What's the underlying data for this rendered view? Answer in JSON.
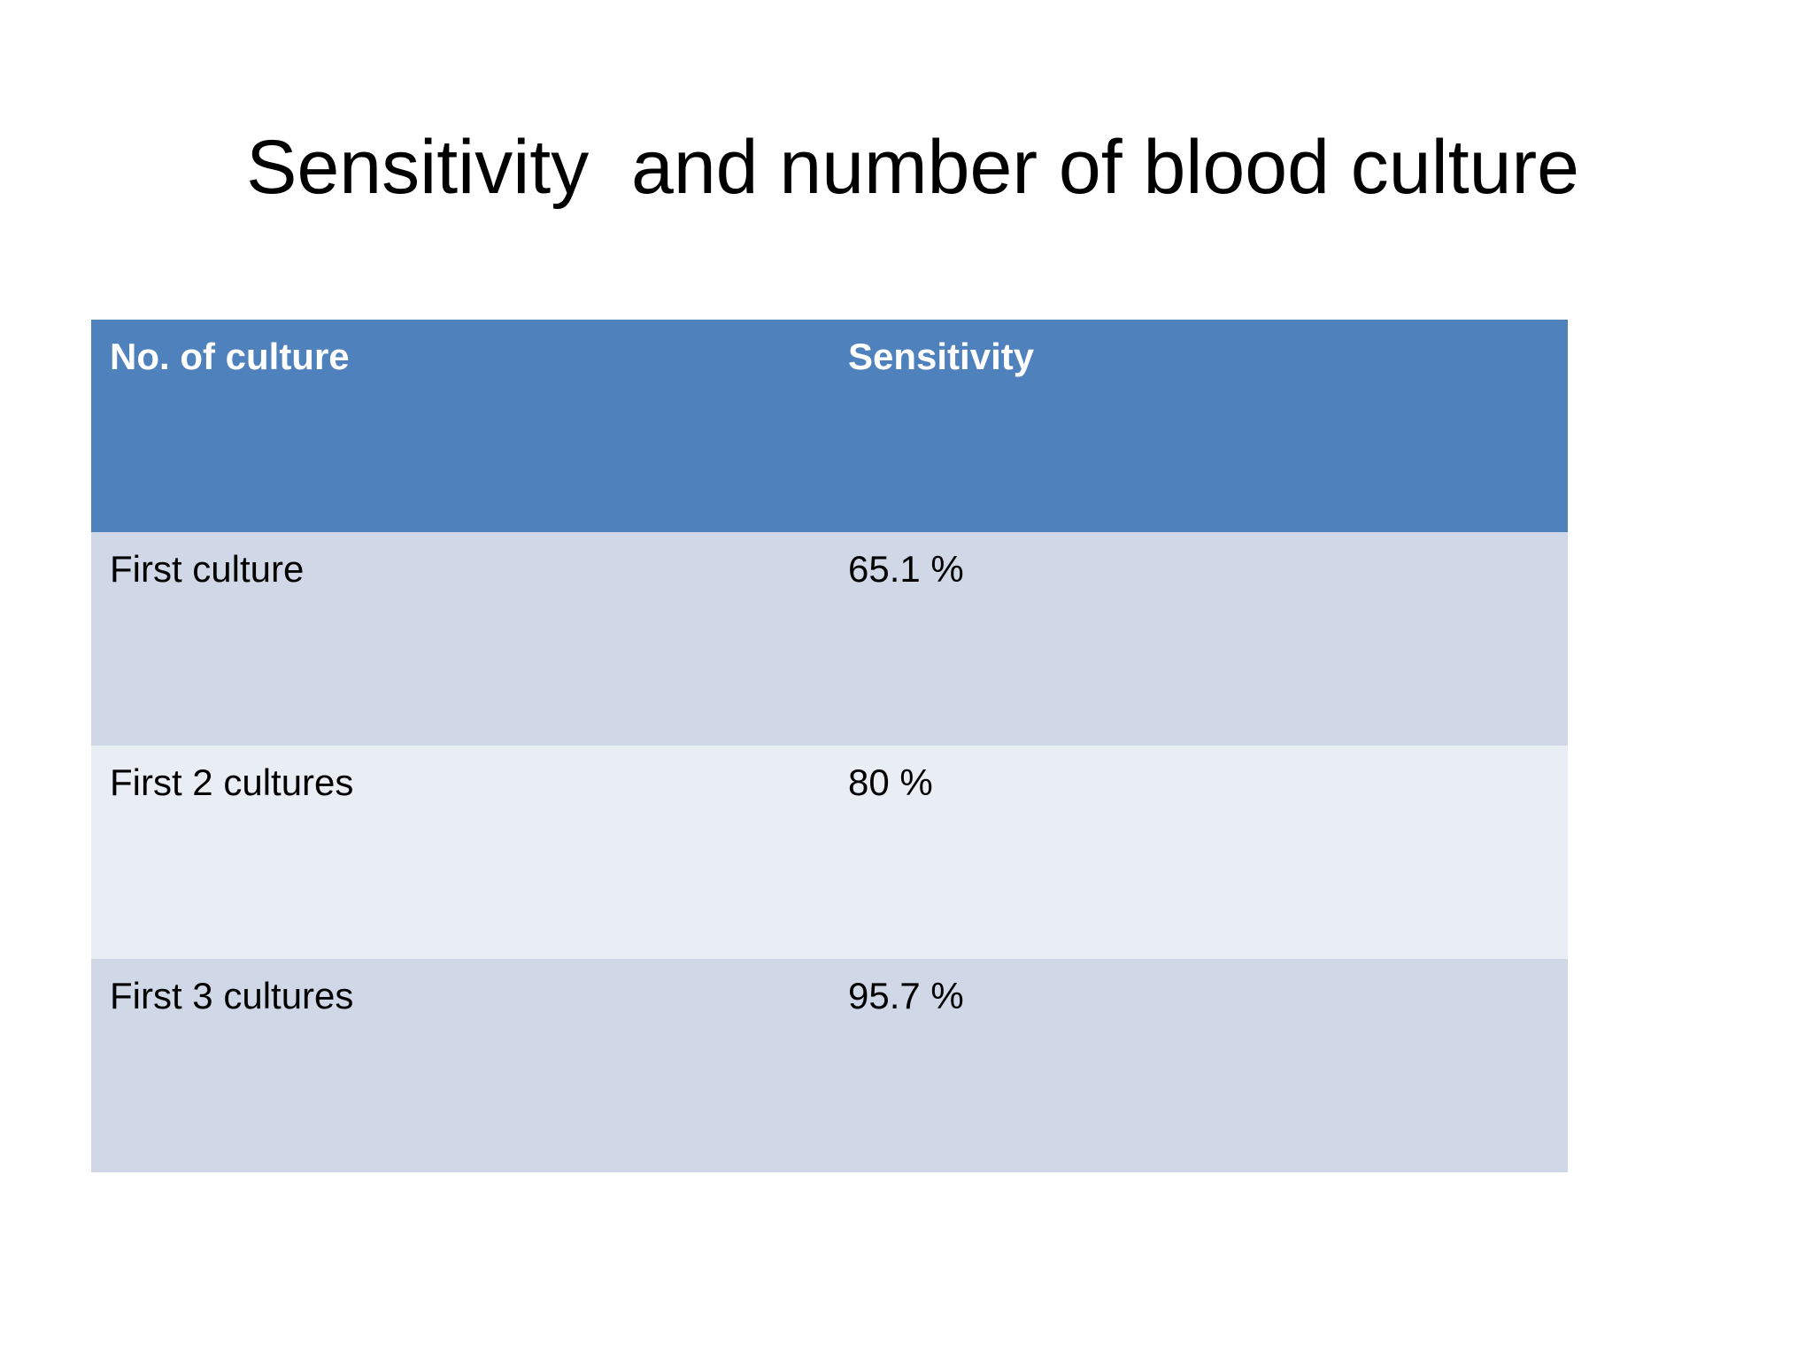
{
  "title": "Sensitivity  and number of blood culture",
  "table": {
    "header": [
      "No. of culture",
      "Sensitivity"
    ],
    "rows": [
      [
        "First culture",
        "65.1 %"
      ],
      [
        "First 2 cultures",
        "80 %"
      ],
      [
        "First 3 cultures",
        "95.7 %"
      ]
    ]
  }
}
